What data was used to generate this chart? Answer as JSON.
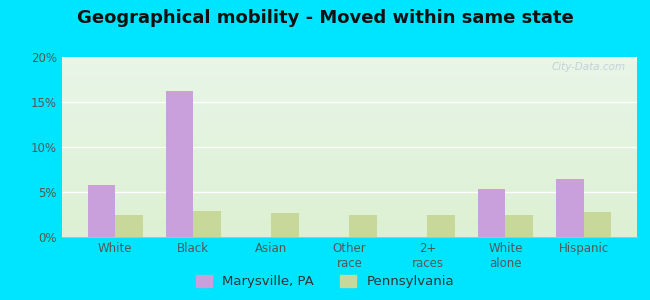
{
  "title": "Geographical mobility - Moved within same state",
  "categories": [
    "White",
    "Black",
    "Asian",
    "Other\nrace",
    "2+\nraces",
    "White\nalone",
    "Hispanic"
  ],
  "marysville_values": [
    5.8,
    16.2,
    0.0,
    0.0,
    0.0,
    5.3,
    6.4
  ],
  "pennsylvania_values": [
    2.4,
    2.9,
    2.7,
    2.4,
    2.5,
    2.5,
    2.8
  ],
  "marysville_color": "#c9a0dc",
  "pennsylvania_color": "#c8d89a",
  "ylim": [
    0,
    20
  ],
  "yticks": [
    0,
    5,
    10,
    15,
    20
  ],
  "ytick_labels": [
    "0%",
    "5%",
    "10%",
    "15%",
    "20%"
  ],
  "bar_width": 0.35,
  "bg_top_color": "#e8f5e8",
  "bg_bottom_color": "#f8fff0",
  "outer_bg": "#00e5ff",
  "watermark": "City-Data.com",
  "legend_marysville": "Marysville, PA",
  "legend_pennsylvania": "Pennsylvania",
  "title_fontsize": 13,
  "tick_fontsize": 8.5,
  "legend_fontsize": 9.5
}
